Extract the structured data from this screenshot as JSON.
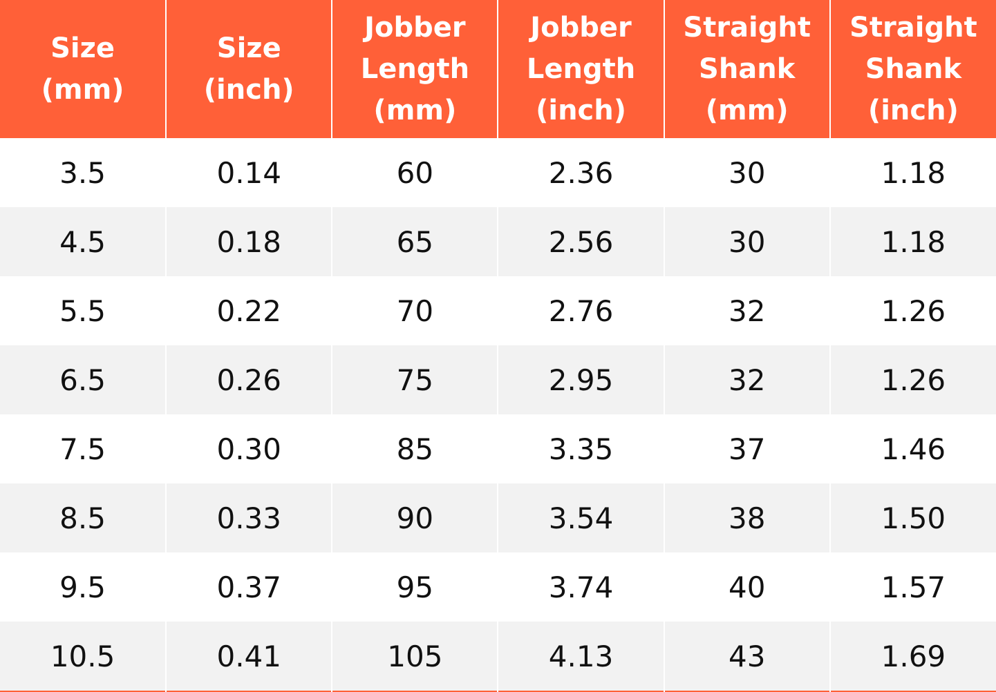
{
  "table": {
    "header": [
      "Size\n(mm)",
      "Size\n(inch)",
      "Jobber\nLength\n(mm)",
      "Jobber\nLength\n(inch)",
      "Straight\nShank\n(mm)",
      "Straight\nShank\n(inch)"
    ],
    "rows": [
      [
        "3.5",
        "0.14",
        "60",
        "2.36",
        "30",
        "1.18"
      ],
      [
        "4.5",
        "0.18",
        "65",
        "2.56",
        "30",
        "1.18"
      ],
      [
        "5.5",
        "0.22",
        "70",
        "2.76",
        "32",
        "1.26"
      ],
      [
        "6.5",
        "0.26",
        "75",
        "2.95",
        "32",
        "1.26"
      ],
      [
        "7.5",
        "0.30",
        "85",
        "3.35",
        "37",
        "1.46"
      ],
      [
        "8.5",
        "0.33",
        "90",
        "3.54",
        "38",
        "1.50"
      ],
      [
        "9.5",
        "0.37",
        "95",
        "3.74",
        "40",
        "1.57"
      ],
      [
        "10.5",
        "0.41",
        "105",
        "4.13",
        "43",
        "1.69"
      ]
    ]
  }
}
